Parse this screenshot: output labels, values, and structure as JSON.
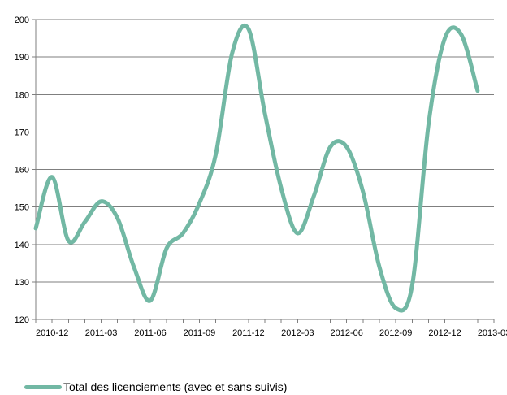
{
  "chart_data": {
    "type": "line",
    "title": "",
    "xlabel": "",
    "ylabel": "",
    "ylim": [
      120,
      200
    ],
    "yticks": [
      120,
      130,
      140,
      150,
      160,
      170,
      180,
      190,
      200
    ],
    "grid": "horizontal",
    "legend_position": "bottom-left",
    "x_tick_labels": [
      "2010-12",
      "2011-03",
      "2011-06",
      "2011-09",
      "2011-12",
      "2012-03",
      "2012-06",
      "2012-09",
      "2012-12",
      "2013-03"
    ],
    "x": [
      "2010-11",
      "2010-12",
      "2011-01",
      "2011-02",
      "2011-03",
      "2011-04",
      "2011-05",
      "2011-06",
      "2011-07",
      "2011-08",
      "2011-09",
      "2011-10",
      "2011-11",
      "2011-12",
      "2012-01",
      "2012-02",
      "2012-03",
      "2012-04",
      "2012-05",
      "2012-06",
      "2012-07",
      "2012-08",
      "2012-09",
      "2012-10",
      "2012-11",
      "2012-12",
      "2013-01",
      "2013-02"
    ],
    "series": [
      {
        "name": "Total des licenciements (avec et sans suivis)",
        "color": "#72b8a4",
        "values": [
          144.3,
          158.0,
          141.0,
          146.0,
          151.5,
          147.0,
          134.0,
          125.0,
          139.0,
          143.0,
          151.0,
          164.0,
          191.0,
          197.5,
          175.0,
          155.0,
          143.0,
          153.0,
          166.0,
          166.0,
          154.0,
          134.0,
          123.0,
          129.0,
          172.0,
          195.0,
          196.0,
          181.0
        ]
      }
    ]
  }
}
